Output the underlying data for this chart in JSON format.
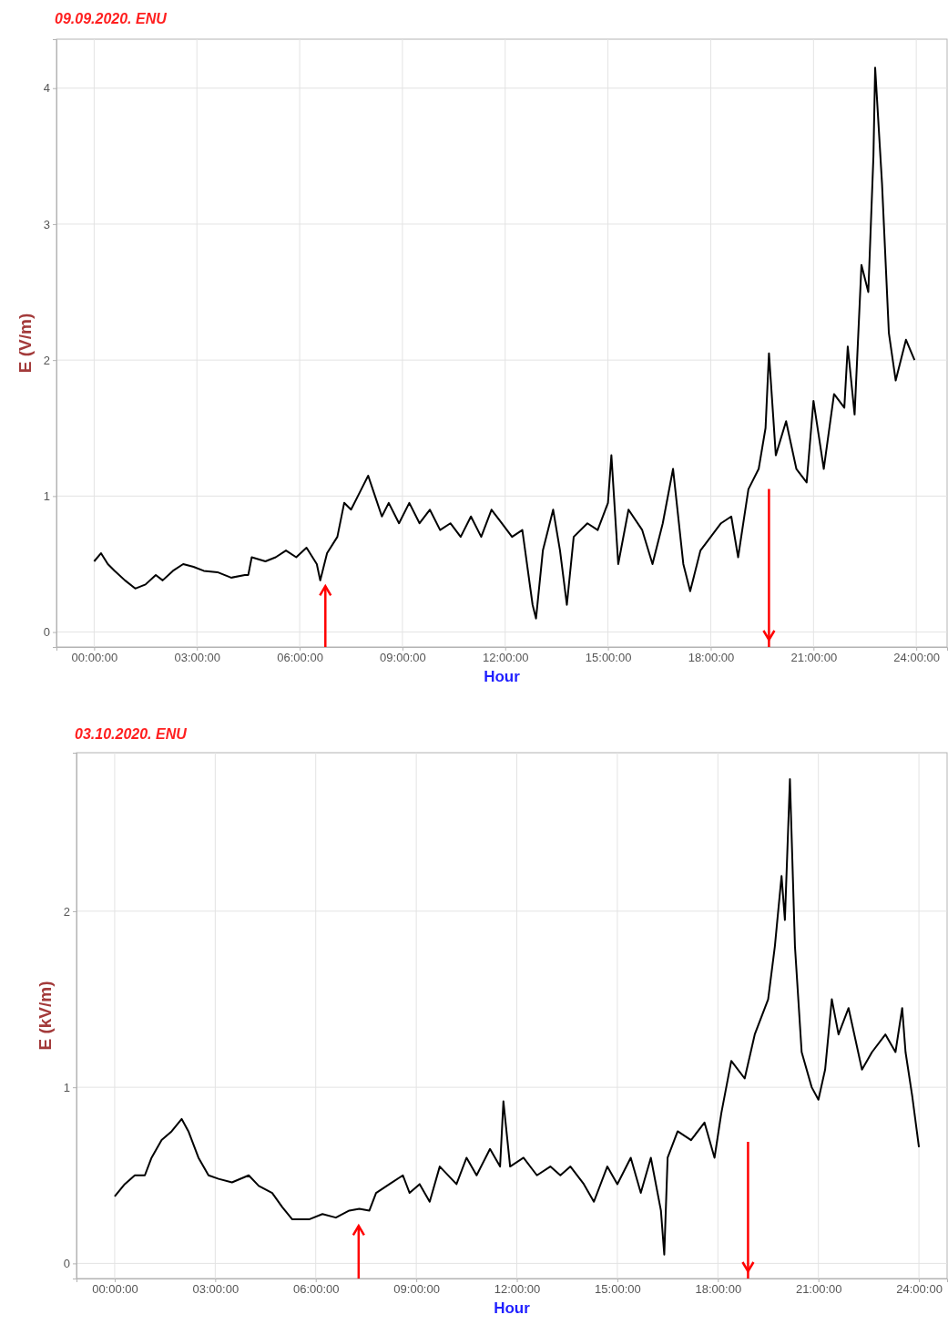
{
  "chart_data": [
    {
      "type": "line",
      "title": "09.09.2020. ENU",
      "xlabel": "Hour",
      "ylabel": "E (V/m)",
      "xlim": [
        -1.1,
        24.9
      ],
      "ylim": [
        -0.11,
        4.36
      ],
      "xticks": [
        {
          "value": 0,
          "label": "00:00:00"
        },
        {
          "value": 3,
          "label": "03:00:00"
        },
        {
          "value": 6,
          "label": "06:00:00"
        },
        {
          "value": 9,
          "label": "09:00:00"
        },
        {
          "value": 12,
          "label": "12:00:00"
        },
        {
          "value": 15,
          "label": "15:00:00"
        },
        {
          "value": 18,
          "label": "18:00:00"
        },
        {
          "value": 21,
          "label": "21:00:00"
        },
        {
          "value": 24,
          "label": "24:00:00"
        }
      ],
      "yticks": [
        0,
        1,
        2,
        3,
        4
      ],
      "grid": true,
      "ref_lines": [
        {
          "axis": "x",
          "value": 6.75,
          "color": "#ff0000"
        },
        {
          "axis": "x",
          "value": 19.7,
          "color": "#ff0000"
        }
      ],
      "series": [
        {
          "color": "#000000",
          "x": [
            0,
            0.2,
            0.4,
            0.6,
            0.9,
            1.2,
            1.5,
            1.8,
            2.0,
            2.3,
            2.6,
            2.9,
            3.2,
            3.6,
            4.0,
            4.4,
            4.5,
            4.6,
            5.0,
            5.3,
            5.6,
            5.9,
            6.2,
            6.5,
            6.6,
            6.8,
            7.1,
            7.3,
            7.5,
            7.8,
            8.0,
            8.2,
            8.4,
            8.6,
            8.9,
            9.2,
            9.5,
            9.8,
            10.1,
            10.4,
            10.7,
            11.0,
            11.3,
            11.6,
            11.9,
            12.2,
            12.5,
            12.8,
            12.9,
            13.1,
            13.4,
            13.6,
            13.8,
            14.0,
            14.4,
            14.7,
            15.0,
            15.1,
            15.3,
            15.6,
            16.0,
            16.3,
            16.6,
            16.9,
            17.2,
            17.4,
            17.7,
            18.0,
            18.3,
            18.6,
            18.8,
            19.1,
            19.4,
            19.6,
            19.7,
            19.9,
            20.2,
            20.5,
            20.8,
            21.0,
            21.3,
            21.6,
            21.9,
            22.0,
            22.2,
            22.4,
            22.6,
            22.75,
            22.8,
            23.0,
            23.2,
            23.4,
            23.7,
            23.95
          ],
          "values": [
            0.52,
            0.58,
            0.5,
            0.45,
            0.38,
            0.32,
            0.35,
            0.42,
            0.38,
            0.45,
            0.5,
            0.48,
            0.45,
            0.44,
            0.4,
            0.42,
            0.42,
            0.55,
            0.52,
            0.55,
            0.6,
            0.55,
            0.62,
            0.5,
            0.38,
            0.58,
            0.7,
            0.95,
            0.9,
            1.05,
            1.15,
            1.0,
            0.85,
            0.95,
            0.8,
            0.95,
            0.8,
            0.9,
            0.75,
            0.8,
            0.7,
            0.85,
            0.7,
            0.9,
            0.8,
            0.7,
            0.75,
            0.2,
            0.1,
            0.6,
            0.9,
            0.6,
            0.2,
            0.7,
            0.8,
            0.75,
            0.95,
            1.3,
            0.5,
            0.9,
            0.75,
            0.5,
            0.8,
            1.2,
            0.5,
            0.3,
            0.6,
            0.7,
            0.8,
            0.85,
            0.55,
            1.05,
            1.2,
            1.5,
            2.05,
            1.3,
            1.55,
            1.2,
            1.1,
            1.7,
            1.2,
            1.75,
            1.65,
            2.1,
            1.6,
            2.7,
            2.5,
            3.5,
            4.15,
            3.3,
            2.2,
            1.85,
            2.15,
            2.0
          ]
        }
      ]
    },
    {
      "type": "line",
      "title": "03.10.2020. ENU",
      "xlabel": "Hour",
      "ylabel": "E (kV/m)",
      "xlim": [
        -1.14,
        24.84
      ],
      "ylim": [
        -0.086,
        2.9
      ],
      "xticks": [
        {
          "value": 0,
          "label": "00:00:00"
        },
        {
          "value": 3,
          "label": "03:00:00"
        },
        {
          "value": 6,
          "label": "06:00:00"
        },
        {
          "value": 9,
          "label": "09:00:00"
        },
        {
          "value": 12,
          "label": "12:00:00"
        },
        {
          "value": 15,
          "label": "15:00:00"
        },
        {
          "value": 18,
          "label": "18:00:00"
        },
        {
          "value": 21,
          "label": "21:00:00"
        },
        {
          "value": 24,
          "label": "24:00:00"
        }
      ],
      "yticks": [
        0,
        1,
        2
      ],
      "grid": true,
      "ref_lines": [
        {
          "axis": "x",
          "value": 7.28,
          "color": "#ff0000"
        },
        {
          "axis": "x",
          "value": 18.9,
          "color": "#ff0000"
        }
      ],
      "series": [
        {
          "color": "#000000",
          "x": [
            0,
            0.3,
            0.6,
            0.9,
            1.1,
            1.4,
            1.7,
            2.0,
            2.2,
            2.5,
            2.8,
            3.1,
            3.5,
            4.0,
            4.3,
            4.7,
            5.0,
            5.3,
            5.8,
            6.2,
            6.6,
            7.0,
            7.3,
            7.6,
            7.8,
            8.2,
            8.6,
            8.8,
            9.1,
            9.4,
            9.7,
            10.2,
            10.5,
            10.8,
            11.2,
            11.5,
            11.6,
            11.8,
            12.2,
            12.6,
            13.0,
            13.3,
            13.6,
            14.0,
            14.3,
            14.7,
            15.0,
            15.4,
            15.7,
            16.0,
            16.3,
            16.4,
            16.5,
            16.8,
            17.2,
            17.6,
            17.9,
            18.1,
            18.4,
            18.8,
            19.1,
            19.5,
            19.7,
            19.9,
            20.0,
            20.15,
            20.3,
            20.5,
            20.8,
            21.0,
            21.2,
            21.4,
            21.6,
            21.9,
            22.3,
            22.6,
            23.0,
            23.3,
            23.5,
            23.6,
            23.8,
            24.0
          ],
          "values": [
            0.38,
            0.45,
            0.5,
            0.5,
            0.6,
            0.7,
            0.75,
            0.82,
            0.75,
            0.6,
            0.5,
            0.48,
            0.46,
            0.5,
            0.44,
            0.4,
            0.32,
            0.25,
            0.25,
            0.28,
            0.26,
            0.3,
            0.31,
            0.3,
            0.4,
            0.45,
            0.5,
            0.4,
            0.45,
            0.35,
            0.55,
            0.45,
            0.6,
            0.5,
            0.65,
            0.55,
            0.92,
            0.55,
            0.6,
            0.5,
            0.55,
            0.5,
            0.55,
            0.45,
            0.35,
            0.55,
            0.45,
            0.6,
            0.4,
            0.6,
            0.3,
            0.05,
            0.6,
            0.75,
            0.7,
            0.8,
            0.6,
            0.85,
            1.15,
            1.05,
            1.3,
            1.5,
            1.8,
            2.2,
            1.95,
            2.75,
            1.8,
            1.2,
            1.0,
            0.93,
            1.1,
            1.5,
            1.3,
            1.45,
            1.1,
            1.2,
            1.3,
            1.2,
            1.45,
            1.2,
            0.95,
            0.66
          ]
        }
      ]
    }
  ]
}
